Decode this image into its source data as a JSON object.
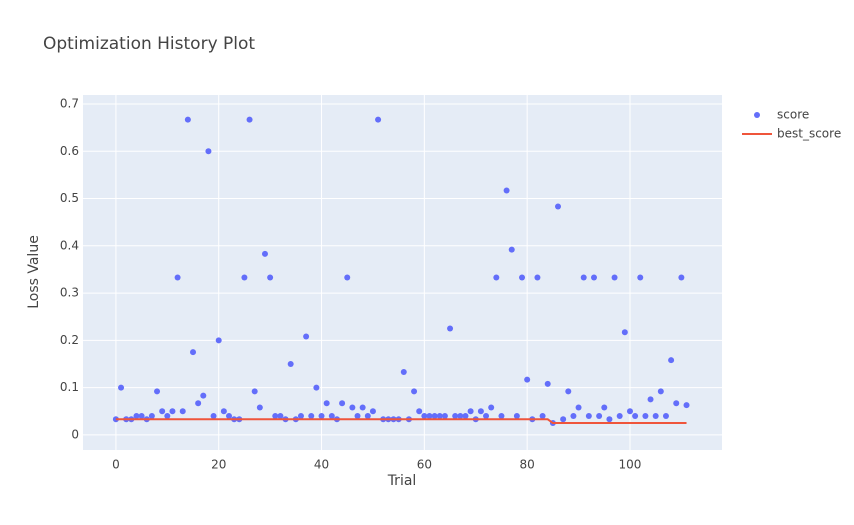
{
  "chart_data": {
    "type": "scatter",
    "title": "Optimization History Plot",
    "x_label": "Trial",
    "y_label": "Loss Value",
    "x": [
      0,
      1,
      2,
      3,
      4,
      5,
      6,
      7,
      8,
      9,
      10,
      11,
      12,
      13,
      14,
      15,
      16,
      17,
      18,
      19,
      20,
      21,
      22,
      23,
      24,
      25,
      26,
      27,
      28,
      29,
      30,
      31,
      32,
      33,
      34,
      35,
      36,
      37,
      38,
      39,
      40,
      41,
      42,
      43,
      44,
      45,
      46,
      47,
      48,
      49,
      50,
      51,
      52,
      53,
      54,
      55,
      56,
      57,
      58,
      59,
      60,
      61,
      62,
      63,
      64,
      65,
      66,
      67,
      68,
      69,
      70,
      71,
      72,
      73,
      74,
      75,
      76,
      77,
      78,
      79,
      80,
      81,
      82,
      83,
      84,
      85,
      86,
      87,
      88,
      89,
      90,
      91,
      92,
      93,
      94,
      95,
      96,
      97,
      98,
      99,
      100,
      101,
      102,
      103,
      104,
      105,
      106,
      107,
      108,
      109,
      110,
      111
    ],
    "series": [
      {
        "name": "score",
        "mode": "markers",
        "color": "#636efa",
        "values": [
          0.033,
          0.1,
          0.033,
          0.033,
          0.04,
          0.04,
          0.033,
          0.04,
          0.092,
          0.05,
          0.04,
          0.05,
          0.333,
          0.05,
          0.667,
          0.175,
          0.067,
          0.083,
          0.6,
          0.04,
          0.2,
          0.05,
          0.04,
          0.033,
          0.033,
          0.333,
          0.667,
          0.092,
          0.058,
          0.383,
          0.333,
          0.04,
          0.04,
          0.033,
          0.15,
          0.033,
          0.04,
          0.208,
          0.04,
          0.1,
          0.04,
          0.067,
          0.04,
          0.033,
          0.067,
          0.333,
          0.058,
          0.04,
          0.058,
          0.04,
          0.05,
          0.667,
          0.033,
          0.033,
          0.033,
          0.033,
          0.133,
          0.033,
          0.092,
          0.05,
          0.04,
          0.04,
          0.04,
          0.04,
          0.04,
          0.225,
          0.04,
          0.04,
          0.04,
          0.05,
          0.033,
          0.05,
          0.04,
          0.058,
          0.333,
          0.04,
          0.517,
          0.392,
          0.04,
          0.333,
          0.117,
          0.033,
          0.333,
          0.04,
          0.108,
          0.025,
          0.483,
          0.033,
          0.092,
          0.04,
          0.058,
          0.333,
          0.04,
          0.333,
          0.04,
          0.058,
          0.033,
          0.333,
          0.04,
          0.217,
          0.05,
          0.04,
          0.333,
          0.04,
          0.075,
          0.04,
          0.092,
          0.04,
          0.158,
          0.067,
          0.333,
          0.063
        ]
      },
      {
        "name": "best_score",
        "mode": "lines",
        "color": "#EF553B",
        "values": [
          0.033,
          0.033,
          0.033,
          0.033,
          0.033,
          0.033,
          0.033,
          0.033,
          0.033,
          0.033,
          0.033,
          0.033,
          0.033,
          0.033,
          0.033,
          0.033,
          0.033,
          0.033,
          0.033,
          0.033,
          0.033,
          0.033,
          0.033,
          0.033,
          0.033,
          0.033,
          0.033,
          0.033,
          0.033,
          0.033,
          0.033,
          0.033,
          0.033,
          0.033,
          0.033,
          0.033,
          0.033,
          0.033,
          0.033,
          0.033,
          0.033,
          0.033,
          0.033,
          0.033,
          0.033,
          0.033,
          0.033,
          0.033,
          0.033,
          0.033,
          0.033,
          0.033,
          0.033,
          0.033,
          0.033,
          0.033,
          0.033,
          0.033,
          0.033,
          0.033,
          0.033,
          0.033,
          0.033,
          0.033,
          0.033,
          0.033,
          0.033,
          0.033,
          0.033,
          0.033,
          0.033,
          0.033,
          0.033,
          0.033,
          0.033,
          0.033,
          0.033,
          0.033,
          0.033,
          0.033,
          0.033,
          0.033,
          0.033,
          0.033,
          0.033,
          0.025,
          0.025,
          0.025,
          0.025,
          0.025,
          0.025,
          0.025,
          0.025,
          0.025,
          0.025,
          0.025,
          0.025,
          0.025,
          0.025,
          0.025,
          0.025,
          0.025,
          0.025,
          0.025,
          0.025,
          0.025,
          0.025,
          0.025,
          0.025,
          0.025,
          0.025,
          0.025
        ]
      }
    ],
    "xlim": [
      -6.4,
      117.9
    ],
    "xticks": [
      0,
      20,
      40,
      60,
      80,
      100
    ],
    "ylim": [
      -0.032,
      0.719
    ],
    "yticks": [
      0,
      0.1,
      0.2,
      0.3,
      0.4,
      0.5,
      0.6,
      0.7
    ],
    "grid": true,
    "legend": "right"
  }
}
